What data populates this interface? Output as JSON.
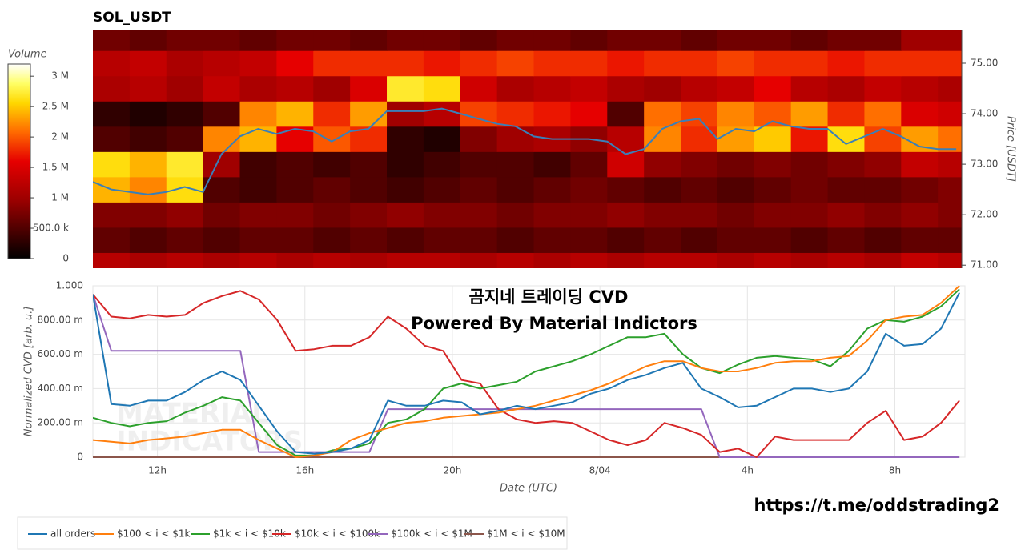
{
  "chart_data": [
    {
      "type": "heatmap",
      "title": "SOL_USDT",
      "y_label": "Price [USDT]",
      "xlim": [
        10.25,
        33.9
      ],
      "ylim": [
        70.94,
        75.65
      ],
      "yticks": [
        {
          "value": 71,
          "label": "71.00"
        },
        {
          "value": 72,
          "label": "72.00"
        },
        {
          "value": 73,
          "label": "73.00"
        },
        {
          "value": 74,
          "label": "74.00"
        },
        {
          "value": 75,
          "label": "75.00"
        }
      ],
      "x": [
        10.75,
        11.75,
        12.75,
        13.75,
        14.75,
        15.75,
        16.75,
        17.75,
        18.75,
        19.75,
        20.75,
        21.75,
        22.75,
        23.75,
        24.75,
        25.75,
        26.75,
        27.75,
        28.75,
        29.75,
        30.75,
        31.75,
        32.75,
        33.75
      ],
      "y": [
        71.0,
        71.5,
        72.0,
        72.5,
        73.0,
        73.5,
        74.0,
        74.5,
        75.0,
        75.5
      ],
      "z": [
        [
          1200000.0,
          1100000.0,
          1200000.0,
          1100000.0,
          1200000.0,
          1100000.0,
          1200000.0,
          1100000.0,
          1200000.0,
          1200000.0,
          1100000.0,
          1200000.0,
          1100000.0,
          1200000.0,
          1100000.0,
          1200000.0,
          1200000.0,
          1100000.0,
          1200000.0,
          1100000.0,
          1200000.0,
          1100000.0,
          1300000.0,
          1200000.0
        ],
        [
          600000.0,
          500000.0,
          600000.0,
          500000.0,
          600000.0,
          600000.0,
          500000.0,
          600000.0,
          500000.0,
          600000.0,
          600000.0,
          500000.0,
          600000.0,
          600000.0,
          500000.0,
          600000.0,
          500000.0,
          600000.0,
          600000.0,
          500000.0,
          600000.0,
          500000.0,
          600000.0,
          600000.0
        ],
        [
          800000.0,
          800000.0,
          900000.0,
          700000.0,
          800000.0,
          800000.0,
          700000.0,
          800000.0,
          900000.0,
          800000.0,
          800000.0,
          700000.0,
          800000.0,
          800000.0,
          900000.0,
          800000.0,
          800000.0,
          700000.0,
          800000.0,
          800000.0,
          900000.0,
          800000.0,
          900000.0,
          800000.0
        ],
        [
          2400000.0,
          2200000.0,
          2600000.0,
          500000.0,
          400000.0,
          500000.0,
          600000.0,
          500000.0,
          400000.0,
          500000.0,
          600000.0,
          500000.0,
          600000.0,
          700000.0,
          600000.0,
          500000.0,
          600000.0,
          500000.0,
          600000.0,
          700000.0,
          600000.0,
          600000.0,
          700000.0,
          800000.0
        ],
        [
          2600000.0,
          2400000.0,
          2700000.0,
          1000000.0,
          400000.0,
          500000.0,
          400000.0,
          500000.0,
          300000.0,
          400000.0,
          500000.0,
          500000.0,
          400000.0,
          600000.0,
          1400000.0,
          900000.0,
          800000.0,
          700000.0,
          800000.0,
          700000.0,
          800000.0,
          900000.0,
          1300000.0,
          1200000.0
        ],
        [
          500000.0,
          400000.0,
          500000.0,
          2200000.0,
          2400000.0,
          1600000.0,
          2000000.0,
          1800000.0,
          300000.0,
          200000.0,
          800000.0,
          1000000.0,
          1100000.0,
          900000.0,
          1200000.0,
          2200000.0,
          1800000.0,
          2300000.0,
          2500000.0,
          1700000.0,
          2600000.0,
          1900000.0,
          2300000.0,
          2100000.0
        ],
        [
          300000.0,
          200000.0,
          300000.0,
          500000.0,
          2200000.0,
          2400000.0,
          1800000.0,
          2300000.0,
          1000000.0,
          1200000.0,
          1900000.0,
          1800000.0,
          1700000.0,
          1600000.0,
          500000.0,
          2100000.0,
          1900000.0,
          2200000.0,
          2000000.0,
          2300000.0,
          1800000.0,
          2100000.0,
          1500000.0,
          1400000.0
        ],
        [
          1100000.0,
          1200000.0,
          1000000.0,
          1300000.0,
          1100000.0,
          1200000.0,
          1000000.0,
          1500000.0,
          2700000.0,
          2600000.0,
          1400000.0,
          1100000.0,
          1200000.0,
          1300000.0,
          1100000.0,
          1000000.0,
          1200000.0,
          1300000.0,
          1600000.0,
          1200000.0,
          1100000.0,
          1300000.0,
          1200000.0,
          1100000.0
        ],
        [
          1200000.0,
          1300000.0,
          1100000.0,
          1200000.0,
          1300000.0,
          1600000.0,
          1800000.0,
          1800000.0,
          1800000.0,
          1700000.0,
          1800000.0,
          1900000.0,
          1800000.0,
          1800000.0,
          1700000.0,
          1800000.0,
          1800000.0,
          1900000.0,
          1800000.0,
          1800000.0,
          1700000.0,
          1800000.0,
          1800000.0,
          1800000.0
        ],
        [
          700000.0,
          600000.0,
          700000.0,
          700000.0,
          600000.0,
          700000.0,
          700000.0,
          600000.0,
          700000.0,
          700000.0,
          600000.0,
          700000.0,
          700000.0,
          600000.0,
          700000.0,
          700000.0,
          600000.0,
          700000.0,
          700000.0,
          600000.0,
          700000.0,
          700000.0,
          1000000.0,
          1000000.0
        ]
      ],
      "colorscale": [
        [
          0,
          "#000000"
        ],
        [
          0.3,
          "#9b0000"
        ],
        [
          0.5,
          "#e60000"
        ],
        [
          0.65,
          "#ff6a00"
        ],
        [
          0.8,
          "#ffd800"
        ],
        [
          0.9,
          "#ffff66"
        ],
        [
          1,
          "#ffffff"
        ]
      ],
      "colorbar": {
        "title": "Volume",
        "zlim": [
          0,
          3200000.0
        ],
        "ticks": [
          0,
          {
            "value": 500000,
            "label": "500.0 k"
          },
          {
            "value": 1000000,
            "label": "1 M"
          },
          {
            "value": 1500000,
            "label": "1.5 M"
          },
          {
            "value": 2000000,
            "label": "2 M"
          },
          {
            "value": 2500000,
            "label": "2.5 M"
          },
          {
            "value": 3000000,
            "label": "3 M"
          }
        ]
      },
      "price_color": "#3a7fb8",
      "price_x": [
        10.25,
        10.75,
        11.25,
        11.75,
        12.25,
        12.75,
        13.25,
        13.75,
        14.25,
        14.75,
        15.25,
        15.75,
        16.25,
        16.75,
        17.25,
        17.75,
        18.25,
        18.75,
        19.25,
        19.75,
        20.25,
        20.75,
        21.25,
        21.75,
        22.25,
        22.75,
        23.25,
        23.75,
        24.25,
        24.75,
        25.25,
        25.75,
        26.25,
        26.75,
        27.25,
        27.75,
        28.25,
        28.75,
        29.25,
        29.75,
        30.25,
        30.75,
        31.25,
        31.75,
        32.25,
        32.75,
        33.25,
        33.75
      ],
      "price_values": [
        72.65,
        72.5,
        72.45,
        72.4,
        72.45,
        72.55,
        72.45,
        73.2,
        73.55,
        73.7,
        73.6,
        73.7,
        73.65,
        73.45,
        73.65,
        73.7,
        74.05,
        74.05,
        74.05,
        74.1,
        74.0,
        73.9,
        73.8,
        73.75,
        73.55,
        73.5,
        73.5,
        73.5,
        73.45,
        73.2,
        73.3,
        73.7,
        73.85,
        73.9,
        73.5,
        73.7,
        73.65,
        73.85,
        73.75,
        73.7,
        73.7,
        73.4,
        73.55,
        73.7,
        73.55,
        73.35,
        73.3,
        73.3
      ]
    },
    {
      "type": "line",
      "x_label": "Date (UTC)",
      "y_label": "Normalized CVD [arb. u.]",
      "annotations": [
        "곰지네 트레이딩 CVD",
        "Powered By Material Indictors"
      ],
      "watermark": [
        "MATERIAL",
        "INDICATORS"
      ],
      "grid": true,
      "xlim": [
        10.25,
        33.9
      ],
      "ylim": [
        0,
        1
      ],
      "xticks": [
        {
          "value": 12,
          "label": "12h"
        },
        {
          "value": 16,
          "label": "16h"
        },
        {
          "value": 20,
          "label": "20h"
        },
        {
          "value": 24,
          "label": "8/04"
        },
        {
          "value": 28,
          "label": "4h"
        },
        {
          "value": 32,
          "label": "8h"
        }
      ],
      "yticks": [
        0,
        {
          "value": 0.2,
          "label": "200.00 m"
        },
        {
          "value": 0.4,
          "label": "400.00 m"
        },
        {
          "value": 0.6,
          "label": "600.00 m"
        },
        {
          "value": 0.8,
          "label": "800.00 m"
        },
        {
          "value": 1,
          "label": "1.000"
        }
      ],
      "x": [
        10.25,
        10.75,
        11.25,
        11.75,
        12.25,
        12.75,
        13.25,
        13.75,
        14.25,
        14.75,
        15.25,
        15.75,
        16.25,
        16.75,
        17.25,
        17.75,
        18.25,
        18.75,
        19.25,
        19.75,
        20.25,
        20.75,
        21.25,
        21.75,
        22.25,
        22.75,
        23.25,
        23.75,
        24.25,
        24.75,
        25.25,
        25.75,
        26.25,
        26.75,
        27.25,
        27.75,
        28.25,
        28.75,
        29.25,
        29.75,
        30.25,
        30.75,
        31.25,
        31.75,
        32.25,
        32.75,
        33.25,
        33.75
      ],
      "series": [
        {
          "name": "all orders",
          "color": "#1f77b4",
          "values": [
            0.95,
            0.31,
            0.3,
            0.33,
            0.33,
            0.38,
            0.45,
            0.5,
            0.45,
            0.3,
            0.15,
            0.03,
            0.02,
            0.03,
            0.05,
            0.1,
            0.33,
            0.3,
            0.3,
            0.33,
            0.32,
            0.25,
            0.27,
            0.3,
            0.28,
            0.3,
            0.32,
            0.37,
            0.4,
            0.45,
            0.48,
            0.52,
            0.55,
            0.4,
            0.35,
            0.29,
            0.3,
            0.35,
            0.4,
            0.4,
            0.38,
            0.4,
            0.5,
            0.72,
            0.65,
            0.66,
            0.75,
            0.96
          ]
        },
        {
          "name": "$100 < i < $1k",
          "color": "#ff7f0e",
          "values": [
            0.1,
            0.09,
            0.08,
            0.1,
            0.11,
            0.12,
            0.14,
            0.16,
            0.16,
            0.1,
            0.05,
            0.0,
            0.01,
            0.03,
            0.1,
            0.14,
            0.17,
            0.2,
            0.21,
            0.23,
            0.24,
            0.25,
            0.26,
            0.28,
            0.3,
            0.33,
            0.36,
            0.39,
            0.43,
            0.48,
            0.53,
            0.56,
            0.56,
            0.52,
            0.5,
            0.5,
            0.52,
            0.55,
            0.56,
            0.56,
            0.58,
            0.59,
            0.68,
            0.8,
            0.82,
            0.83,
            0.9,
            1.0
          ]
        },
        {
          "name": "$1k < i < $10k",
          "color": "#2ca02c",
          "values": [
            0.23,
            0.2,
            0.18,
            0.2,
            0.21,
            0.26,
            0.3,
            0.35,
            0.33,
            0.2,
            0.07,
            0.01,
            0.01,
            0.04,
            0.05,
            0.08,
            0.2,
            0.22,
            0.28,
            0.4,
            0.43,
            0.4,
            0.42,
            0.44,
            0.5,
            0.53,
            0.56,
            0.6,
            0.65,
            0.7,
            0.7,
            0.72,
            0.6,
            0.52,
            0.49,
            0.54,
            0.58,
            0.59,
            0.58,
            0.57,
            0.53,
            0.62,
            0.75,
            0.8,
            0.79,
            0.82,
            0.88,
            0.98
          ]
        },
        {
          "name": "$10k < i < $100k",
          "color": "#d62728",
          "values": [
            0.95,
            0.82,
            0.81,
            0.83,
            0.82,
            0.83,
            0.9,
            0.94,
            0.97,
            0.92,
            0.8,
            0.62,
            0.63,
            0.65,
            0.65,
            0.7,
            0.82,
            0.75,
            0.65,
            0.62,
            0.45,
            0.43,
            0.28,
            0.22,
            0.2,
            0.21,
            0.2,
            0.15,
            0.1,
            0.07,
            0.1,
            0.2,
            0.17,
            0.13,
            0.03,
            0.05,
            0.0,
            0.12,
            0.1,
            0.1,
            0.1,
            0.1,
            0.2,
            0.27,
            0.1,
            0.12,
            0.2,
            0.33
          ]
        },
        {
          "name": "$100k < i < $1M",
          "color": "#9467bd",
          "values": [
            0.95,
            0.62,
            0.62,
            0.62,
            0.62,
            0.62,
            0.62,
            0.62,
            0.62,
            0.03,
            0.03,
            0.03,
            0.03,
            0.03,
            0.03,
            0.03,
            0.28,
            0.28,
            0.28,
            0.28,
            0.28,
            0.28,
            0.28,
            0.28,
            0.28,
            0.28,
            0.28,
            0.28,
            0.28,
            0.28,
            0.28,
            0.28,
            0.28,
            0.28,
            0,
            0,
            0,
            0,
            0,
            0,
            0,
            0,
            0,
            0,
            0,
            0,
            0,
            0
          ]
        },
        {
          "name": "$1M < i < $10M",
          "color": "#8c564b",
          "values": [
            0,
            0,
            0,
            0,
            0,
            0,
            0,
            0,
            0,
            0,
            0,
            0,
            0,
            0,
            0,
            0,
            0,
            0,
            0,
            0,
            0,
            0,
            0,
            0,
            0,
            0,
            0,
            0,
            0,
            0,
            0,
            0,
            0,
            0,
            0,
            0,
            0,
            0,
            0,
            0,
            0,
            0,
            0,
            0,
            0,
            0,
            0,
            0
          ]
        }
      ]
    }
  ],
  "footer_link": "https://t.me/oddstrading2"
}
